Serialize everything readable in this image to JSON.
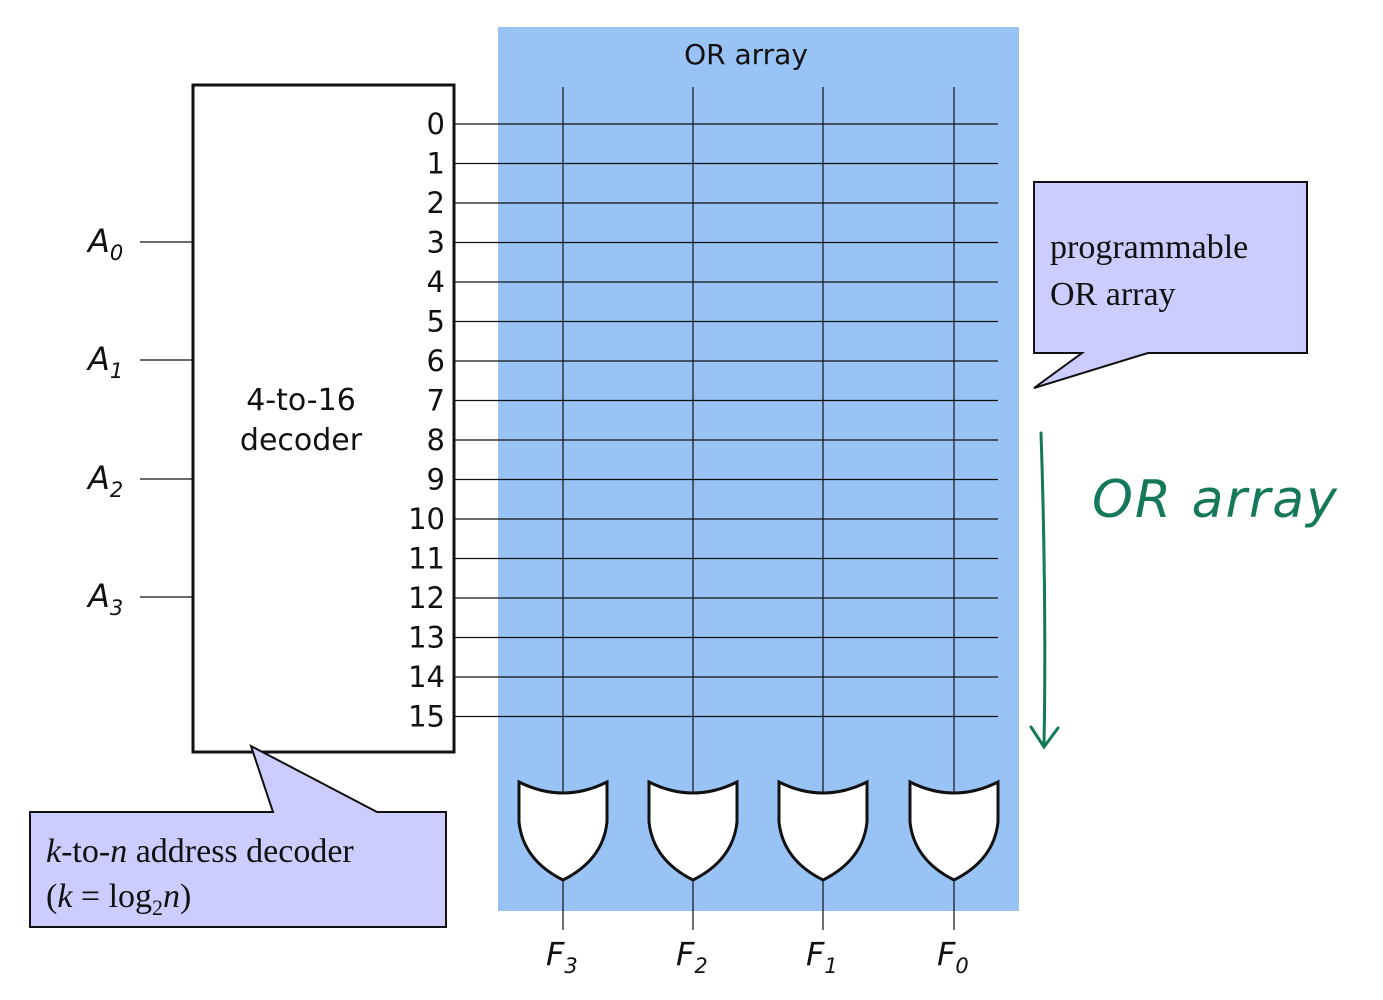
{
  "diagram": {
    "or_array_label": "OR array",
    "decoder_label_line1": "4-to-16",
    "decoder_label_line2": "decoder",
    "decoder_outputs": [
      "0",
      "1",
      "2",
      "3",
      "4",
      "5",
      "6",
      "7",
      "8",
      "9",
      "10",
      "11",
      "12",
      "13",
      "14",
      "15"
    ],
    "inputs": [
      {
        "base": "A",
        "sub": "0"
      },
      {
        "base": "A",
        "sub": "1"
      },
      {
        "base": "A",
        "sub": "2"
      },
      {
        "base": "A",
        "sub": "3"
      }
    ],
    "outputs": [
      {
        "base": "F",
        "sub": "3"
      },
      {
        "base": "F",
        "sub": "2"
      },
      {
        "base": "F",
        "sub": "1"
      },
      {
        "base": "F",
        "sub": "0"
      }
    ],
    "callout_or": {
      "line1": "programmable",
      "line2": "OR array"
    },
    "callout_decoder": {
      "line1_k": "k",
      "line1_to": "-to-",
      "line1_n": "n",
      "line1_rest": " address decoder",
      "line2_open": "(",
      "line2_k": "k",
      "line2_eq": " = log",
      "line2_sub": "2",
      "line2_n": "n",
      "line2_close": ")"
    },
    "handwritten_note": "OR array",
    "colors": {
      "or_array_bg": "#99c3f5",
      "callout_bg": "#ccccff",
      "handwriting": "#16785a",
      "line": "#111111"
    }
  }
}
